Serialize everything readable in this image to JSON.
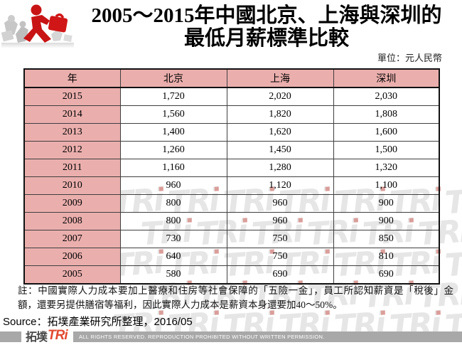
{
  "header": {
    "title_line1": "2005～2015年中國北京、上海與深圳的",
    "title_line2": "最低月薪標準比較",
    "unit_label": "單位：元人民幣"
  },
  "table": {
    "columns": [
      "年",
      "北京",
      "上海",
      "深圳"
    ],
    "rows": [
      [
        "2015",
        "1,720",
        "2,020",
        "2,030"
      ],
      [
        "2014",
        "1,560",
        "1,820",
        "1,808"
      ],
      [
        "2013",
        "1,400",
        "1,620",
        "1,600"
      ],
      [
        "2012",
        "1,260",
        "1,450",
        "1,500"
      ],
      [
        "2011",
        "1,160",
        "1,280",
        "1,320"
      ],
      [
        "2010",
        "960",
        "1,120",
        "1,100"
      ],
      [
        "2009",
        "800",
        "960",
        "900"
      ],
      [
        "2008",
        "800",
        "960",
        "900"
      ],
      [
        "2007",
        "730",
        "750",
        "850"
      ],
      [
        "2006",
        "640",
        "750",
        "810"
      ],
      [
        "2005",
        "580",
        "690",
        "690"
      ]
    ]
  },
  "chart_data": {
    "type": "table",
    "title": "2005～2015年中國北京、上海與深圳的最低月薪標準比較",
    "unit": "元人民幣",
    "categories": [
      2015,
      2014,
      2013,
      2012,
      2011,
      2010,
      2009,
      2008,
      2007,
      2006,
      2005
    ],
    "series": [
      {
        "name": "北京",
        "values": [
          1720,
          1560,
          1400,
          1260,
          1160,
          960,
          800,
          800,
          730,
          640,
          580
        ]
      },
      {
        "name": "上海",
        "values": [
          2020,
          1820,
          1620,
          1450,
          1280,
          1120,
          960,
          960,
          750,
          750,
          690
        ]
      },
      {
        "name": "深圳",
        "values": [
          2030,
          1808,
          1600,
          1500,
          1320,
          1100,
          900,
          900,
          850,
          810,
          690
        ]
      }
    ]
  },
  "note": "註：中國實際人力成本要加上醫療和住房等社會保障的「五險一金」，員工所認知薪資是「稅後」金額，還要另提供膳宿等福利，因此實際人力成本是薪資本身還要加40～50%。",
  "source": "Source：拓墣產業研究所整理，2016/05",
  "watermark": {
    "text": "TRi"
  },
  "footer": {
    "logo_cjk": "拓墣",
    "logo_latin": "TRi",
    "copyright": "ALL RIGHTS RESERVED. REPRODUCTION PROHIBITED WITHOUT WRITTEN PERMISSION."
  },
  "colors": {
    "header_pink": "#EAAFAD",
    "brand_red": "#E2492F",
    "footer_gray": "#A8A8A8",
    "figure_red": "#C81414"
  }
}
